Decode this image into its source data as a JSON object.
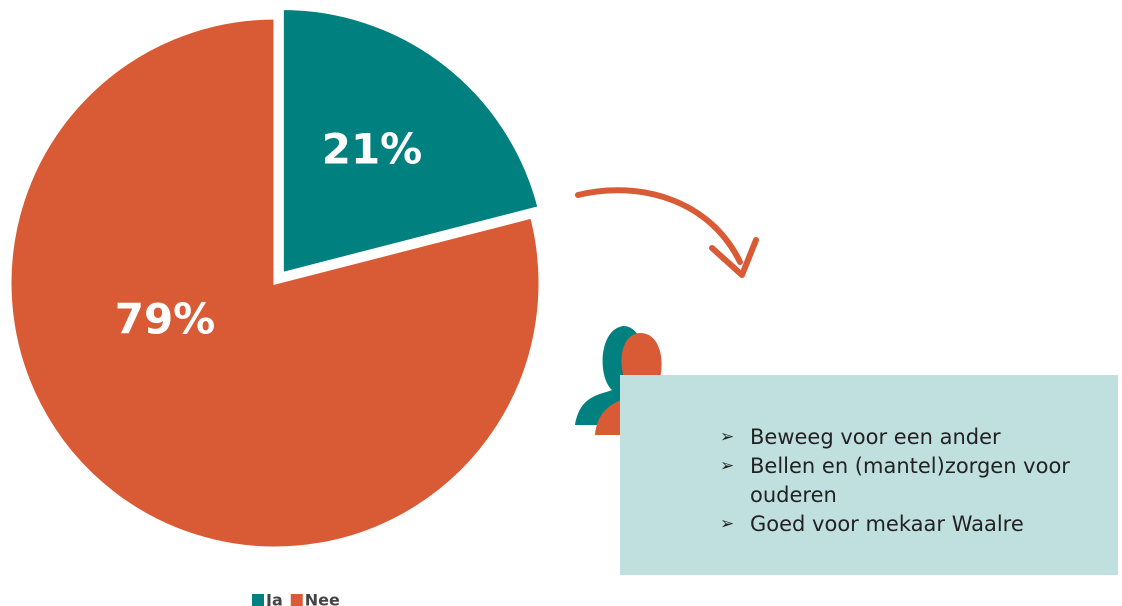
{
  "chart_data": {
    "type": "pie",
    "categories": [
      "Ja",
      "Nee"
    ],
    "values": [
      21,
      79
    ],
    "value_labels": [
      "21%",
      "79%"
    ],
    "colors": [
      "#00807f",
      "#d95b35"
    ],
    "legend": "bottom",
    "annotation": {
      "items": [
        "Beweeg voor een ander",
        "Bellen en (mantel)zorgen voor ouderen",
        "Goed voor mekaar Waalre"
      ]
    }
  }
}
